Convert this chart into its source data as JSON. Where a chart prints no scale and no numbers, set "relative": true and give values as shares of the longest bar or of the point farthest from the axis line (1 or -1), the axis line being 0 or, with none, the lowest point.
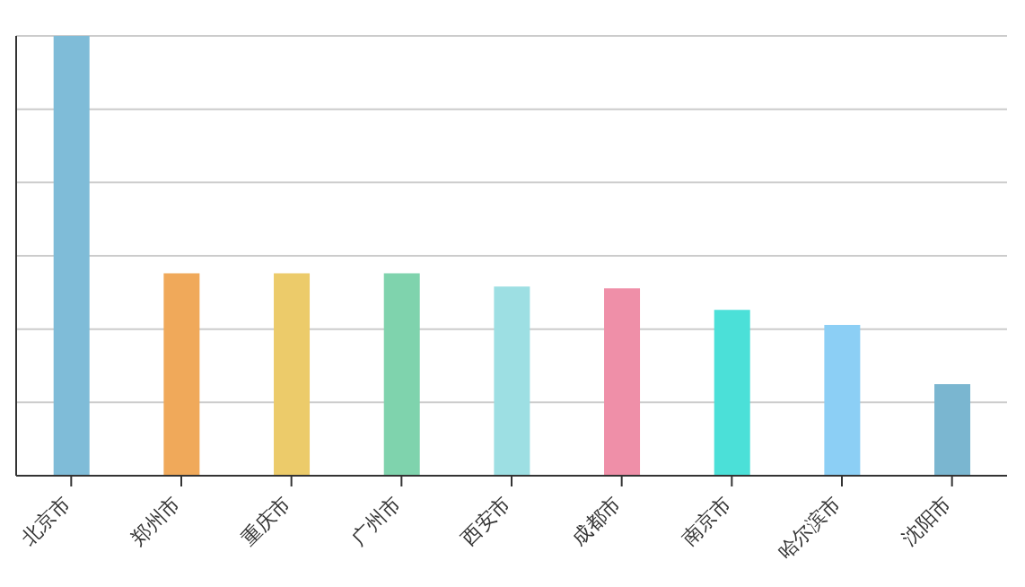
{
  "chart_data": {
    "type": "bar",
    "relative": true,
    "grid": "y",
    "categories": [
      "北京市",
      "郑州市",
      "重庆市",
      "广州市",
      "西安市",
      "成都市",
      "南京市",
      "哈尔滨市",
      "沈阳市"
    ],
    "values": [
      1,
      0.46,
      0.46,
      0.46,
      0.43,
      0.426,
      0.377,
      0.343,
      0.208
    ],
    "colors": [
      "#7fbcd8",
      "#f0a95a",
      "#eccb6a",
      "#7fd3ad",
      "#9ddfe3",
      "#ef8fa8",
      "#4be0d8",
      "#8ccff5",
      "#7ab6d0"
    ]
  }
}
